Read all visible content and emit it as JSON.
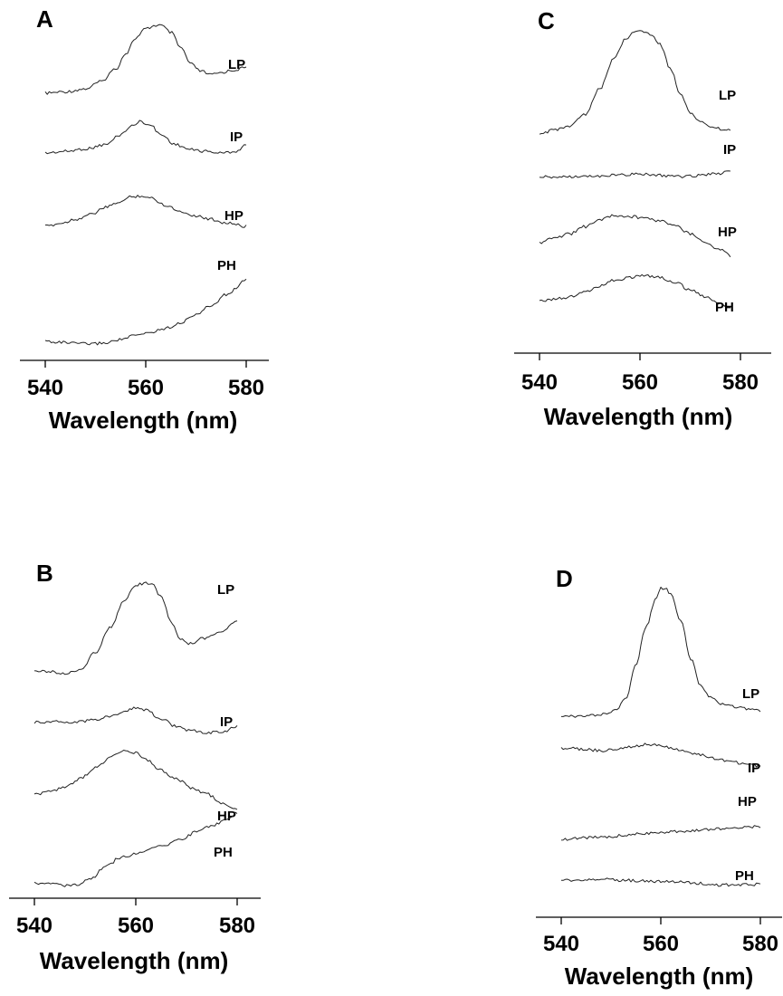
{
  "chart_data": [
    {
      "panel": "A",
      "type": "line",
      "xlabel": "Wavelength (nm)",
      "xticks": [
        540,
        560,
        580
      ],
      "xlim": [
        540,
        580
      ],
      "series": [
        {
          "name": "LP",
          "x": [
            540,
            544,
            548,
            551,
            554,
            556,
            558,
            560,
            562,
            563,
            565,
            567,
            569,
            571,
            573,
            575,
            577,
            580
          ],
          "y": [
            0.04,
            0.06,
            0.1,
            0.2,
            0.38,
            0.6,
            0.82,
            0.95,
            1.0,
            1.0,
            0.9,
            0.68,
            0.45,
            0.35,
            0.3,
            0.33,
            0.36,
            0.4
          ]
        },
        {
          "name": "IP",
          "x": [
            540,
            544,
            548,
            552,
            555,
            557,
            559,
            561,
            563,
            566,
            569,
            572,
            575,
            578,
            580
          ],
          "y": [
            0.0,
            0.02,
            0.05,
            0.1,
            0.22,
            0.32,
            0.38,
            0.33,
            0.22,
            0.1,
            0.04,
            0.02,
            0.0,
            0.02,
            0.1
          ]
        },
        {
          "name": "HP",
          "x": [
            540,
            543,
            546,
            549,
            552,
            555,
            557,
            559,
            561,
            564,
            567,
            570,
            573,
            576,
            580
          ],
          "y": [
            0.0,
            0.05,
            0.12,
            0.2,
            0.32,
            0.42,
            0.5,
            0.52,
            0.48,
            0.36,
            0.25,
            0.18,
            0.12,
            0.06,
            0.0
          ]
        },
        {
          "name": "PH",
          "x": [
            540,
            543,
            546,
            549,
            552,
            555,
            558,
            561,
            564,
            567,
            570,
            573,
            576,
            580
          ],
          "y": [
            0.02,
            0.0,
            -0.02,
            -0.03,
            -0.01,
            0.05,
            0.12,
            0.18,
            0.25,
            0.35,
            0.5,
            0.65,
            0.85,
            1.1
          ]
        }
      ]
    },
    {
      "panel": "B",
      "type": "line",
      "xlabel": "Wavelength (nm)",
      "xticks": [
        540,
        560,
        580
      ],
      "xlim": [
        540,
        580
      ],
      "series": [
        {
          "name": "LP",
          "x": [
            540,
            543,
            546,
            549,
            552,
            555,
            558,
            560,
            562,
            563,
            565,
            567,
            569,
            571,
            573,
            575,
            577,
            580
          ],
          "y": [
            0.0,
            -0.02,
            -0.04,
            0.0,
            0.2,
            0.5,
            0.82,
            0.98,
            1.0,
            1.0,
            0.85,
            0.55,
            0.35,
            0.3,
            0.36,
            0.4,
            0.45,
            0.55
          ]
        },
        {
          "name": "IP",
          "x": [
            540,
            544,
            548,
            552,
            555,
            558,
            560,
            562,
            565,
            568,
            571,
            574,
            577,
            580
          ],
          "y": [
            0.0,
            0.02,
            0.0,
            0.04,
            0.08,
            0.15,
            0.18,
            0.15,
            0.05,
            -0.05,
            -0.1,
            -0.12,
            -0.12,
            -0.05
          ]
        },
        {
          "name": "HP",
          "x": [
            540,
            543,
            546,
            549,
            552,
            555,
            557,
            558,
            560,
            562,
            565,
            568,
            571,
            574,
            577,
            580
          ],
          "y": [
            0.0,
            0.05,
            0.15,
            0.35,
            0.6,
            0.85,
            0.98,
            1.0,
            0.95,
            0.8,
            0.55,
            0.35,
            0.15,
            0.0,
            -0.2,
            -0.35
          ]
        },
        {
          "name": "PH",
          "x": [
            540,
            543,
            546,
            548,
            551,
            554,
            557,
            560,
            563,
            566,
            569,
            572,
            575,
            578,
            580
          ],
          "y": [
            0.0,
            -0.02,
            -0.04,
            -0.04,
            0.05,
            0.25,
            0.4,
            0.45,
            0.55,
            0.6,
            0.7,
            0.8,
            0.9,
            1.0,
            1.1
          ]
        }
      ]
    },
    {
      "panel": "C",
      "type": "line",
      "xlabel": "Wavelength (nm)",
      "xticks": [
        540,
        560,
        580
      ],
      "xlim": [
        540,
        580
      ],
      "series": [
        {
          "name": "LP",
          "x": [
            540,
            543,
            546,
            549,
            552,
            555,
            557,
            559,
            561,
            562,
            564,
            566,
            568,
            570,
            572,
            574,
            576,
            578
          ],
          "y": [
            0.0,
            0.05,
            0.08,
            0.2,
            0.45,
            0.75,
            0.92,
            1.0,
            1.0,
            0.98,
            0.88,
            0.65,
            0.4,
            0.22,
            0.12,
            0.08,
            0.06,
            0.05
          ]
        },
        {
          "name": "IP",
          "x": [
            540,
            544,
            548,
            552,
            556,
            560,
            564,
            568,
            572,
            576,
            578
          ],
          "y": [
            0.0,
            -0.01,
            0.0,
            0.01,
            0.03,
            0.05,
            0.02,
            0.0,
            0.02,
            0.06,
            0.1
          ]
        },
        {
          "name": "HP",
          "x": [
            540,
            543,
            546,
            549,
            552,
            555,
            558,
            561,
            564,
            567,
            570,
            573,
            576,
            578
          ],
          "y": [
            0.0,
            0.06,
            0.12,
            0.22,
            0.32,
            0.38,
            0.36,
            0.34,
            0.3,
            0.24,
            0.12,
            0.0,
            -0.1,
            -0.18
          ]
        },
        {
          "name": "PH",
          "x": [
            540,
            543,
            546,
            549,
            552,
            555,
            558,
            561,
            564,
            567,
            570,
            573,
            576,
            578
          ],
          "y": [
            0.0,
            0.02,
            0.05,
            0.12,
            0.2,
            0.28,
            0.32,
            0.34,
            0.32,
            0.25,
            0.15,
            0.05,
            -0.05,
            -0.1
          ]
        }
      ]
    },
    {
      "panel": "D",
      "type": "line",
      "xlabel": "Wavelength (nm)",
      "xticks": [
        540,
        560,
        580
      ],
      "xlim": [
        540,
        580
      ],
      "series": [
        {
          "name": "LP",
          "x": [
            540,
            544,
            548,
            551,
            553,
            555,
            557,
            559,
            560,
            561,
            562,
            564,
            566,
            568,
            570,
            572,
            575,
            578,
            580
          ],
          "y": [
            0.0,
            0.01,
            0.02,
            0.05,
            0.15,
            0.4,
            0.7,
            0.92,
            1.0,
            1.0,
            0.95,
            0.75,
            0.45,
            0.25,
            0.15,
            0.1,
            0.08,
            0.06,
            0.05
          ]
        },
        {
          "name": "IP",
          "x": [
            540,
            544,
            548,
            552,
            555,
            557,
            559,
            562,
            565,
            568,
            571,
            574,
            577,
            580
          ],
          "y": [
            0.05,
            0.03,
            0.0,
            0.04,
            0.08,
            0.12,
            0.1,
            0.05,
            -0.02,
            -0.08,
            -0.15,
            -0.2,
            -0.25,
            -0.28
          ]
        },
        {
          "name": "HP",
          "x": [
            540,
            544,
            548,
            552,
            556,
            560,
            564,
            568,
            572,
            576,
            580
          ],
          "y": [
            0.0,
            0.03,
            0.05,
            0.08,
            0.12,
            0.15,
            0.18,
            0.2,
            0.24,
            0.26,
            0.28
          ]
        },
        {
          "name": "PH",
          "x": [
            540,
            544,
            548,
            552,
            556,
            560,
            564,
            568,
            572,
            576,
            580
          ],
          "y": [
            0.0,
            0.0,
            0.01,
            0.0,
            -0.01,
            -0.02,
            -0.02,
            -0.04,
            -0.06,
            -0.06,
            -0.05
          ]
        }
      ]
    }
  ]
}
